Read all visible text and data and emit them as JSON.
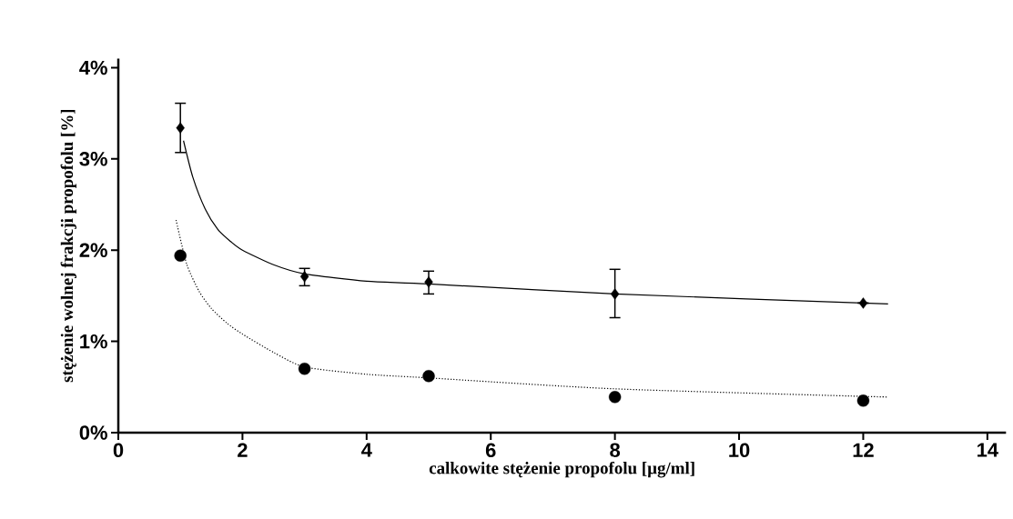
{
  "chart_data": {
    "type": "scatter",
    "xlabel": "calkowite stężenie propofolu [µg/ml]",
    "ylabel": "stężenie wolnej frakcji propofolu [%]",
    "xlim": [
      0,
      14.3
    ],
    "ylim": [
      0,
      4.1
    ],
    "xticks": [
      0,
      2,
      4,
      6,
      8,
      10,
      12,
      14
    ],
    "yticks": [
      {
        "value": 0,
        "label": "0%"
      },
      {
        "value": 1,
        "label": "1%"
      },
      {
        "value": 2,
        "label": "2%"
      },
      {
        "value": 3,
        "label": "3%"
      },
      {
        "value": 4,
        "label": "4%"
      }
    ],
    "grid": false,
    "series": [
      {
        "type": "line",
        "color": "#000000",
        "marker": "none",
        "line_style": "solid",
        "x": [
          1.05,
          1.2,
          1.4,
          1.6,
          1.8,
          2,
          2.5,
          3,
          4,
          5,
          8,
          12.4
        ],
        "values": [
          3.2,
          2.8,
          2.45,
          2.23,
          2.1,
          2.0,
          1.84,
          1.74,
          1.66,
          1.63,
          1.52,
          1.41
        ]
      },
      {
        "type": "line",
        "color": "#000000",
        "marker": "none",
        "line_style": "dotted",
        "x": [
          0.93,
          1.1,
          1.3,
          1.5,
          1.75,
          2,
          2.5,
          3,
          4,
          5,
          8,
          12.4
        ],
        "values": [
          2.33,
          1.85,
          1.55,
          1.36,
          1.2,
          1.08,
          0.88,
          0.72,
          0.64,
          0.6,
          0.48,
          0.39
        ]
      },
      {
        "color": "#000000",
        "marker": "diamond",
        "x": [
          1,
          3,
          5,
          8,
          12
        ],
        "values": [
          3.34,
          1.71,
          1.65,
          1.52,
          1.42
        ],
        "errors": [
          [
            3.07,
            3.61
          ],
          [
            1.61,
            1.8
          ],
          [
            1.52,
            1.77
          ],
          [
            1.26,
            1.79
          ],
          null
        ]
      },
      {
        "color": "#000000",
        "marker": "circle",
        "x": [
          1,
          3,
          5,
          8,
          12
        ],
        "values": [
          1.94,
          0.7,
          0.62,
          0.39,
          0.35
        ]
      }
    ]
  }
}
